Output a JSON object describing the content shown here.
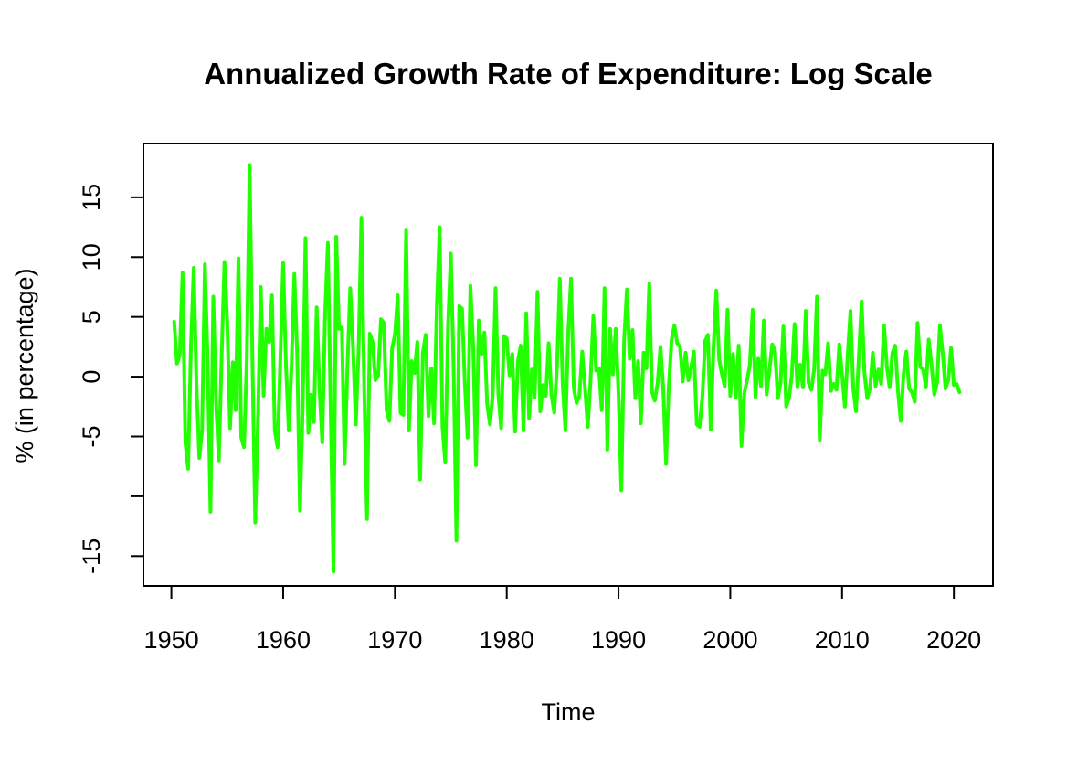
{
  "chart_data": {
    "type": "line",
    "title": "Annualized Growth Rate of Expenditure: Log Scale",
    "xlabel": "Time",
    "ylabel": "% (in percentage)",
    "xlim": [
      1947.5,
      2023.5
    ],
    "ylim": [
      -17.5,
      19.5
    ],
    "x_ticks": [
      1950,
      1960,
      1970,
      1980,
      1990,
      2000,
      2010,
      2020
    ],
    "y_ticks": [
      -15,
      -10,
      -5,
      0,
      5,
      10,
      15
    ],
    "y_tick_labels": [
      "-15",
      "",
      "-5",
      "0",
      "5",
      "10",
      "15"
    ],
    "grid": false,
    "legend": "none",
    "series_color": "#22ff00",
    "series": [
      {
        "x_start": 1950.25,
        "x_step": 0.25,
        "values": [
          4.6,
          1.1,
          1.8,
          8.7,
          -5.5,
          -7.7,
          2.5,
          9.1,
          -0.8,
          -6.8,
          -4.5,
          9.4,
          1.2,
          -11.3,
          6.7,
          -2.2,
          -7.0,
          1.8,
          9.6,
          4.6,
          -4.3,
          1.2,
          -2.8,
          9.9,
          -5.1,
          -5.9,
          1.5,
          17.7,
          1.5,
          -12.2,
          -3.5,
          7.5,
          -1.6,
          4.0,
          2.9,
          6.8,
          -4.5,
          -5.9,
          1.5,
          9.5,
          1.0,
          -4.5,
          0.9,
          8.6,
          2.0,
          -11.2,
          -2.5,
          11.6,
          -4.7,
          -1.5,
          -3.8,
          5.8,
          -1.0,
          -5.5,
          5.2,
          11.2,
          -2.7,
          -16.3,
          11.7,
          4.0,
          4.1,
          -7.3,
          0.8,
          7.4,
          2.5,
          -4.0,
          2.2,
          13.3,
          -1.0,
          -11.9,
          3.6,
          2.9,
          -0.3,
          0.1,
          4.8,
          4.5,
          -2.8,
          -3.7,
          2.4,
          3.5,
          6.8,
          -3.0,
          -3.2,
          12.3,
          -4.5,
          1.3,
          0.3,
          2.9,
          -8.6,
          2.0,
          3.5,
          -3.3,
          0.7,
          -3.9,
          6.0,
          12.5,
          -4.2,
          -7.2,
          4.3,
          10.3,
          0.6,
          -13.7,
          5.9,
          5.7,
          -0.5,
          -5.1,
          7.6,
          2.5,
          -7.4,
          4.7,
          1.9,
          3.7,
          -2.3,
          -4.0,
          -1.5,
          7.4,
          -1.5,
          -4.3,
          3.4,
          3.2,
          0.1,
          1.9,
          -4.6,
          1.3,
          2.6,
          -4.5,
          5.3,
          -3.5,
          0.6,
          -1.7,
          7.1,
          -2.9,
          -0.7,
          -1.6,
          2.8,
          -1.5,
          -3.0,
          0.9,
          8.2,
          -0.5,
          -4.5,
          3.7,
          8.2,
          -1.0,
          -2.2,
          -1.6,
          2.1,
          -0.9,
          -4.2,
          -0.3,
          5.1,
          0.5,
          0.7,
          -2.8,
          7.4,
          -6.1,
          4.0,
          0.2,
          4.0,
          -1.5,
          -9.5,
          3.0,
          7.3,
          1.5,
          3.9,
          -1.8,
          1.3,
          -3.9,
          2.0,
          0.7,
          7.8,
          -1.3,
          -2.0,
          -0.5,
          2.5,
          -1.0,
          -7.3,
          -0.8,
          3.1,
          4.3,
          2.8,
          2.5,
          -0.4,
          2.0,
          -0.3,
          0.8,
          2.1,
          -4.0,
          -4.2,
          -1.7,
          3.0,
          3.5,
          -4.4,
          2.5,
          7.2,
          1.5,
          0.2,
          -0.8,
          5.6,
          -1.6,
          1.9,
          -1.7,
          2.6,
          -5.8,
          -1.4,
          -0.3,
          1.0,
          5.6,
          -1.7,
          1.5,
          -0.8,
          4.7,
          -1.5,
          0.5,
          2.7,
          2.2,
          -1.8,
          -0.5,
          4.2,
          -2.5,
          -1.8,
          0.1,
          4.4,
          -0.9,
          1.0,
          -0.9,
          5.5,
          -0.5,
          -1.1,
          0.6,
          6.7,
          -5.3,
          0.5,
          0.2,
          2.8,
          -1.2,
          -0.6,
          -1.1,
          2.7,
          0.2,
          -2.5,
          1.8,
          5.5,
          -1.0,
          -2.9,
          1.7,
          6.3,
          0.3,
          -1.8,
          -1.0,
          2.0,
          -0.8,
          0.6,
          -0.6,
          4.3,
          0.9,
          -0.9,
          2.0,
          2.6,
          -1.2,
          -3.7,
          0.2,
          2.1,
          -1.0,
          -1.3,
          -2.1,
          4.5,
          0.8,
          0.6,
          -0.9,
          3.1,
          1.0,
          -1.5,
          -0.5,
          4.3,
          2.0,
          -1.0,
          -0.3,
          2.4,
          -0.7,
          -0.6,
          -1.3
        ]
      }
    ]
  }
}
